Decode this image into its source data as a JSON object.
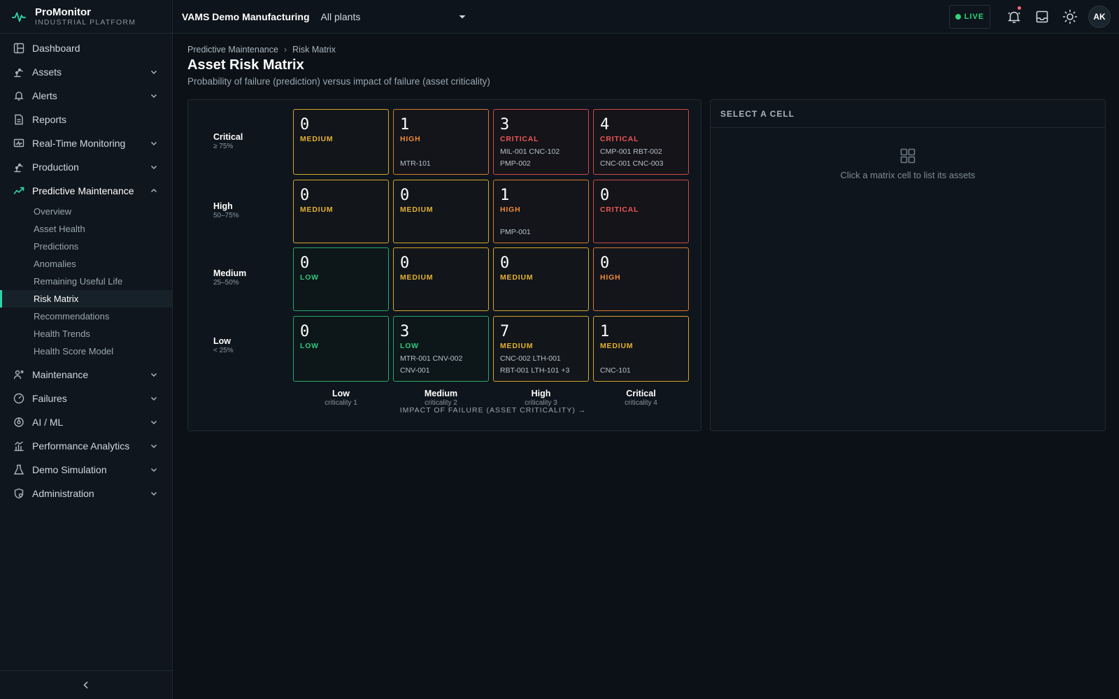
{
  "brand": {
    "name": "ProMonitor",
    "subtitle": "INDUSTRIAL PLATFORM"
  },
  "topbar": {
    "org": "VAMS Demo Manufacturing",
    "plant_select": "All plants",
    "live_label": "LIVE",
    "avatar_initials": "AK"
  },
  "sidebar": {
    "items": [
      {
        "label": "Dashboard",
        "icon": "dashboard-icon"
      },
      {
        "label": "Assets",
        "icon": "robot-arm-icon"
      },
      {
        "label": "Alerts",
        "icon": "bell-icon"
      },
      {
        "label": "Reports",
        "icon": "document-icon"
      },
      {
        "label": "Real-Time Monitoring",
        "icon": "monitor-icon"
      },
      {
        "label": "Production",
        "icon": "robot-arm-icon"
      },
      {
        "label": "Predictive Maintenance",
        "icon": "trend-icon"
      },
      {
        "label": "Maintenance",
        "icon": "worker-icon"
      },
      {
        "label": "Failures",
        "icon": "search-gauge-icon"
      },
      {
        "label": "AI / ML",
        "icon": "brain-icon"
      },
      {
        "label": "Performance Analytics",
        "icon": "bar-chart-icon"
      },
      {
        "label": "Demo Simulation",
        "icon": "flask-icon"
      },
      {
        "label": "Administration",
        "icon": "shield-gear-icon"
      }
    ],
    "pm_sub_items": [
      "Overview",
      "Asset Health",
      "Predictions",
      "Anomalies",
      "Remaining Useful Life",
      "Risk Matrix",
      "Recommendations",
      "Health Trends",
      "Health Score Model"
    ],
    "active_sub_item": "Risk Matrix"
  },
  "breadcrumb": {
    "parent": "Predictive Maintenance",
    "current": "Risk Matrix"
  },
  "page": {
    "title": "Asset Risk Matrix",
    "subtitle": "Probability of failure (prediction) versus impact of failure (asset criticality)"
  },
  "matrix": {
    "rows": [
      {
        "name": "Critical",
        "range": "≥ 75%"
      },
      {
        "name": "High",
        "range": "50–75%"
      },
      {
        "name": "Medium",
        "range": "25–50%"
      },
      {
        "name": "Low",
        "range": "< 25%"
      }
    ],
    "columns": [
      {
        "name": "Low",
        "sub": "criticality 1"
      },
      {
        "name": "Medium",
        "sub": "criticality 2"
      },
      {
        "name": "High",
        "sub": "criticality 3"
      },
      {
        "name": "Critical",
        "sub": "criticality 4"
      }
    ],
    "cells": [
      [
        {
          "count": "0",
          "level": "MEDIUM",
          "assets": []
        },
        {
          "count": "1",
          "level": "HIGH",
          "assets": [
            "MTR-101"
          ]
        },
        {
          "count": "3",
          "level": "CRITICAL",
          "assets": [
            "MIL-001 CNC-102",
            "PMP-002"
          ]
        },
        {
          "count": "4",
          "level": "CRITICAL",
          "assets": [
            "CMP-001 RBT-002",
            "CNC-001 CNC-003"
          ]
        }
      ],
      [
        {
          "count": "0",
          "level": "MEDIUM",
          "assets": []
        },
        {
          "count": "0",
          "level": "MEDIUM",
          "assets": []
        },
        {
          "count": "1",
          "level": "HIGH",
          "assets": [
            "PMP-001"
          ]
        },
        {
          "count": "0",
          "level": "CRITICAL",
          "assets": []
        }
      ],
      [
        {
          "count": "0",
          "level": "LOW",
          "assets": []
        },
        {
          "count": "0",
          "level": "MEDIUM",
          "assets": []
        },
        {
          "count": "0",
          "level": "MEDIUM",
          "assets": []
        },
        {
          "count": "0",
          "level": "HIGH",
          "assets": []
        }
      ],
      [
        {
          "count": "0",
          "level": "LOW",
          "assets": []
        },
        {
          "count": "3",
          "level": "LOW",
          "assets": [
            "MTR-001 CNV-002",
            "CNV-001"
          ]
        },
        {
          "count": "7",
          "level": "MEDIUM",
          "assets": [
            "CNC-002 LTH-001",
            "RBT-001 LTH-101 +3"
          ]
        },
        {
          "count": "1",
          "level": "MEDIUM",
          "assets": [
            "CNC-101"
          ]
        }
      ]
    ],
    "axis_title": "IMPACT OF FAILURE (ASSET CRITICALITY) →"
  },
  "side_panel": {
    "header": "SELECT A CELL",
    "empty_text": "Click a matrix cell to list its assets",
    "empty_icon": "grid-icon"
  },
  "colors": {
    "accent": "#2fd3a8",
    "low": "#2fc77e",
    "medium": "#e5b12e",
    "high": "#ef8a3a",
    "critical": "#ef5555"
  }
}
